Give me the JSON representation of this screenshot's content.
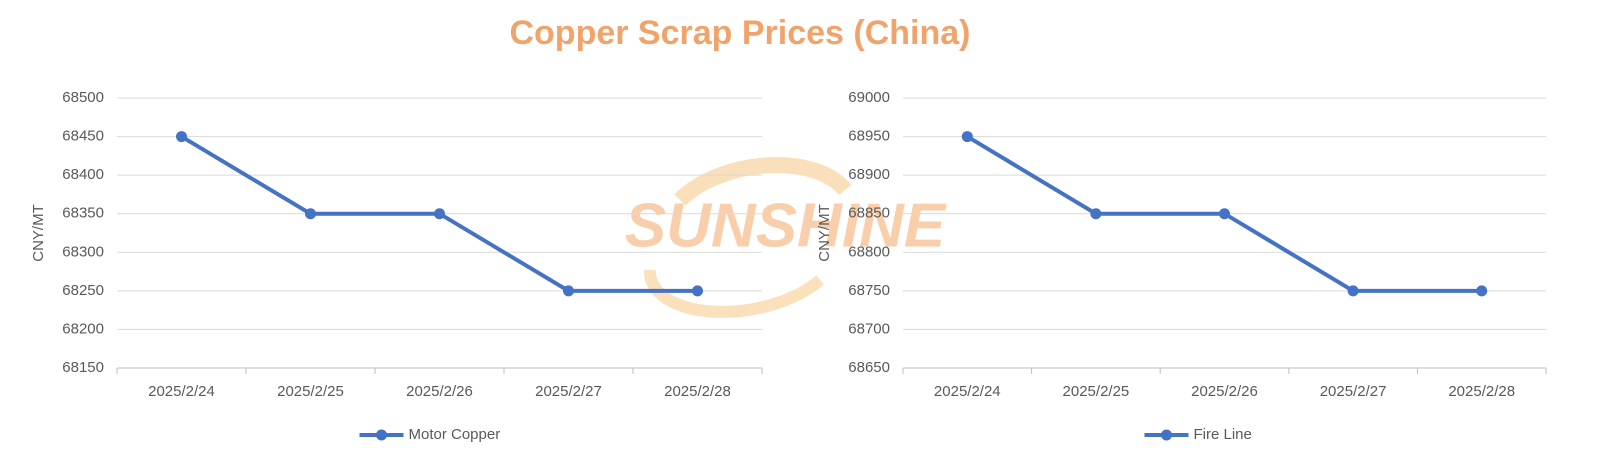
{
  "title": "Copper Scrap Prices (China)",
  "watermark": "SUNSHINE",
  "chart_data": [
    {
      "type": "line",
      "ylabel": "CNY/MT",
      "categories": [
        "2025/2/24",
        "2025/2/25",
        "2025/2/26",
        "2025/2/27",
        "2025/2/28"
      ],
      "series": [
        {
          "name": "Motor Copper",
          "color": "#4472c4",
          "values": [
            68450,
            68350,
            68350,
            68250,
            68250
          ]
        }
      ],
      "ylim": [
        68150,
        68500
      ],
      "yticks": [
        68150,
        68200,
        68250,
        68300,
        68350,
        68400,
        68450,
        68500
      ],
      "grid": true,
      "legend": "bottom"
    },
    {
      "type": "line",
      "ylabel": "CNY/MT",
      "categories": [
        "2025/2/24",
        "2025/2/25",
        "2025/2/26",
        "2025/2/27",
        "2025/2/28"
      ],
      "series": [
        {
          "name": "Fire Line",
          "color": "#4472c4",
          "values": [
            68950,
            68850,
            68850,
            68750,
            68750
          ]
        }
      ],
      "ylim": [
        68650,
        69000
      ],
      "yticks": [
        68650,
        68700,
        68750,
        68800,
        68850,
        68900,
        68950,
        69000
      ],
      "grid": true,
      "legend": "bottom"
    }
  ]
}
